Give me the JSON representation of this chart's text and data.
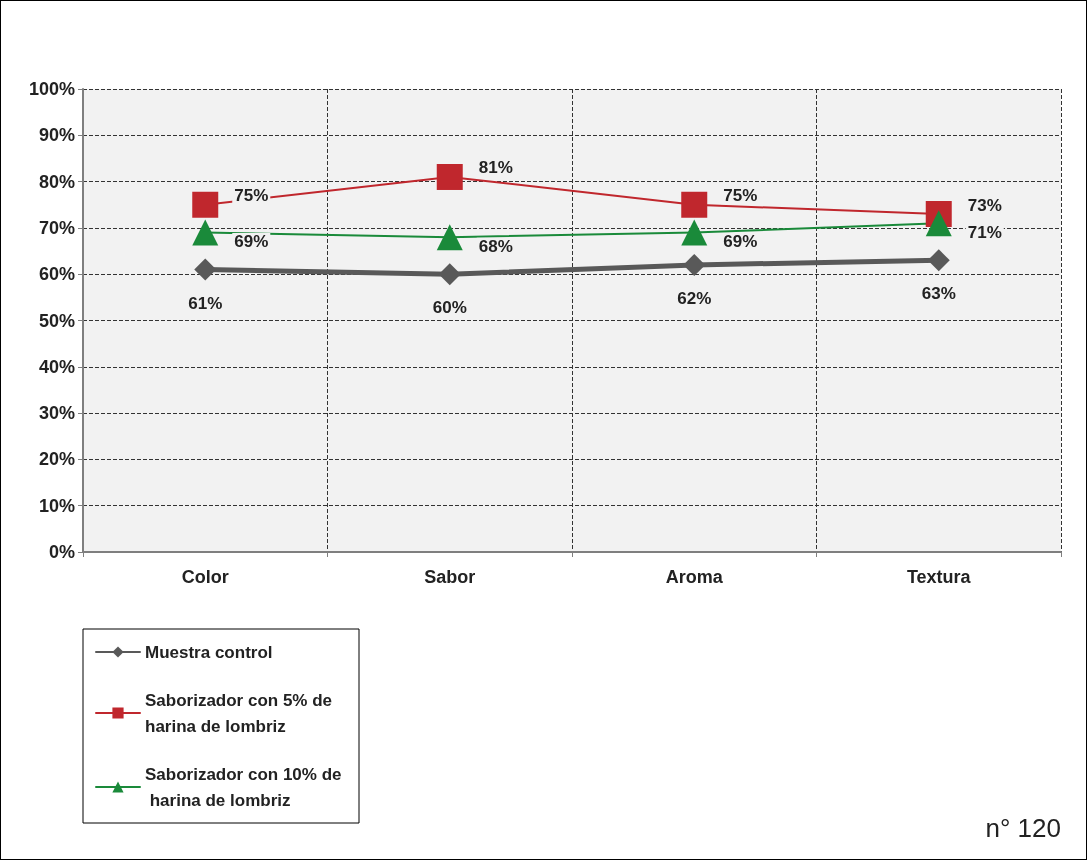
{
  "chart_data": {
    "type": "line",
    "categories": [
      "Color",
      "Sabor",
      "Aroma",
      "Textura"
    ],
    "series": [
      {
        "name": "Muestra control",
        "color": "#595959",
        "marker": "diamond",
        "values": [
          61,
          60,
          62,
          63
        ],
        "value_labels": [
          "61%",
          "60%",
          "62%",
          "63%"
        ]
      },
      {
        "name": "Saborizador con 5% de harina de lombriz",
        "color": "#c0272d",
        "marker": "square",
        "values": [
          75,
          81,
          75,
          73
        ],
        "value_labels": [
          "75%",
          "81%",
          "75%",
          "73%"
        ]
      },
      {
        "name": "Saborizador con 10% de harina de lombriz",
        "color": "#1a8a3a",
        "marker": "triangle",
        "values": [
          69,
          68,
          69,
          71
        ],
        "value_labels": [
          "69%",
          "68%",
          "69%",
          "71%"
        ]
      }
    ],
    "ylim": [
      0,
      100
    ],
    "yticks": [
      {
        "value": 0,
        "label": "0%"
      },
      {
        "value": 10,
        "label": "10%"
      },
      {
        "value": 20,
        "label": "20%"
      },
      {
        "value": 30,
        "label": "30%"
      },
      {
        "value": 40,
        "label": "40%"
      },
      {
        "value": 50,
        "label": "50%"
      },
      {
        "value": 60,
        "label": "60%"
      },
      {
        "value": 70,
        "label": "70%"
      },
      {
        "value": 80,
        "label": "80%"
      },
      {
        "value": 90,
        "label": "90%"
      },
      {
        "value": 100,
        "label": "100%"
      }
    ],
    "grid": true,
    "legend": "bottom left",
    "line_style": "solid",
    "annotations": [
      "n° 120"
    ]
  }
}
